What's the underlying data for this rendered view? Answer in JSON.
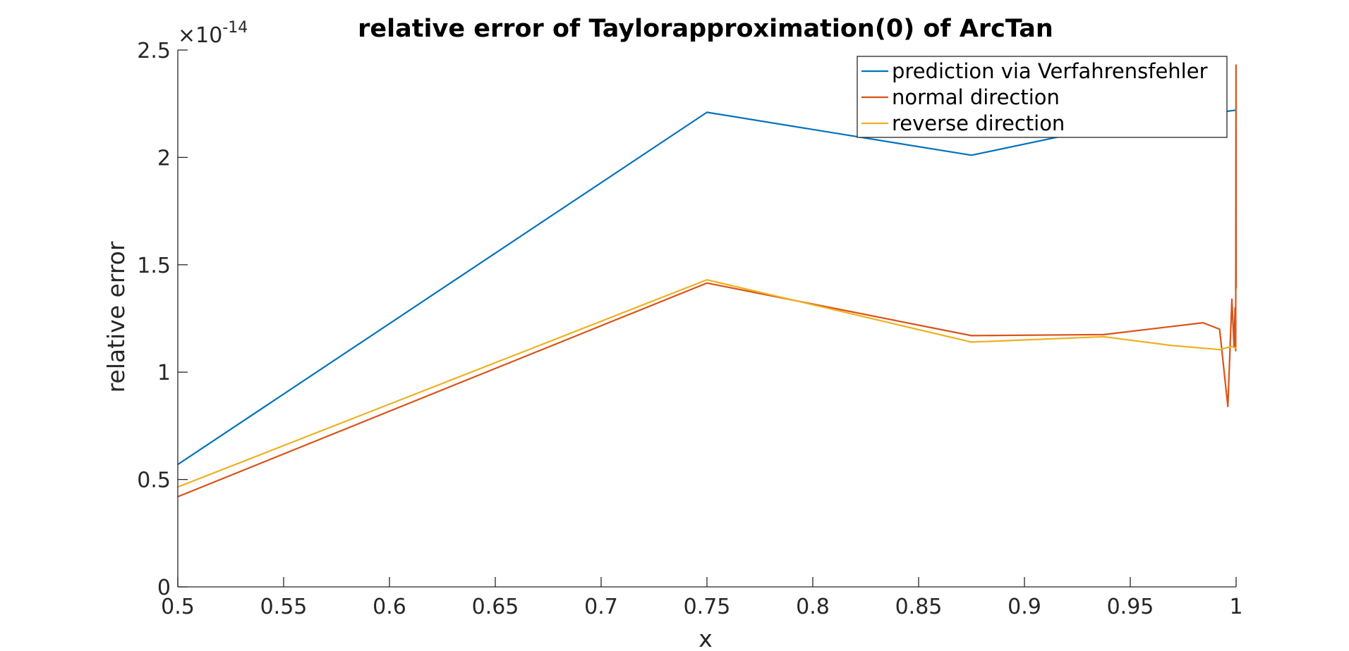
{
  "chart_data": {
    "type": "line",
    "title": "relative error of Taylorapproximation(0) of ArcTan",
    "xlabel": "x",
    "ylabel": "relative error",
    "xlim": [
      0.5,
      1
    ],
    "ylim": [
      0,
      2.5
    ],
    "x_ticks": [
      "0.5",
      "0.55",
      "0.6",
      "0.65",
      "0.7",
      "0.75",
      "0.8",
      "0.85",
      "0.9",
      "0.95",
      "1"
    ],
    "y_ticks": [
      "0",
      "0.5",
      "1",
      "1.5",
      "2",
      "2.5"
    ],
    "y_exponent_prefix": "×10",
    "y_exponent": "-14",
    "legend_position": "top-right",
    "grid": false,
    "series": [
      {
        "name": "prediction via Verfahrensfehler",
        "color": "#0072BD",
        "points": [
          [
            0.5,
            0.57
          ],
          [
            0.75,
            2.21
          ],
          [
            0.875,
            2.01
          ],
          [
            0.9375,
            2.14
          ],
          [
            1.0,
            2.22
          ]
        ]
      },
      {
        "name": "normal direction",
        "color": "#D95319",
        "points": [
          [
            0.5,
            0.42
          ],
          [
            0.75,
            1.415
          ],
          [
            0.875,
            1.17
          ],
          [
            0.9375,
            1.175
          ],
          [
            0.9844,
            1.23
          ],
          [
            0.9922,
            1.2
          ],
          [
            0.9961,
            0.84
          ],
          [
            0.998,
            1.34
          ],
          [
            0.999,
            1.12
          ],
          [
            0.9995,
            1.3
          ],
          [
            0.9998,
            1.1
          ],
          [
            0.99995,
            2.43
          ],
          [
            1.0,
            1.39
          ]
        ]
      },
      {
        "name": "reverse direction",
        "color": "#EDB120",
        "points": [
          [
            0.5,
            0.465
          ],
          [
            0.75,
            1.43
          ],
          [
            0.875,
            1.14
          ],
          [
            0.9375,
            1.165
          ],
          [
            0.9688,
            1.125
          ],
          [
            0.9922,
            1.105
          ],
          [
            0.998,
            1.12
          ],
          [
            1.0,
            1.11
          ]
        ]
      }
    ]
  }
}
